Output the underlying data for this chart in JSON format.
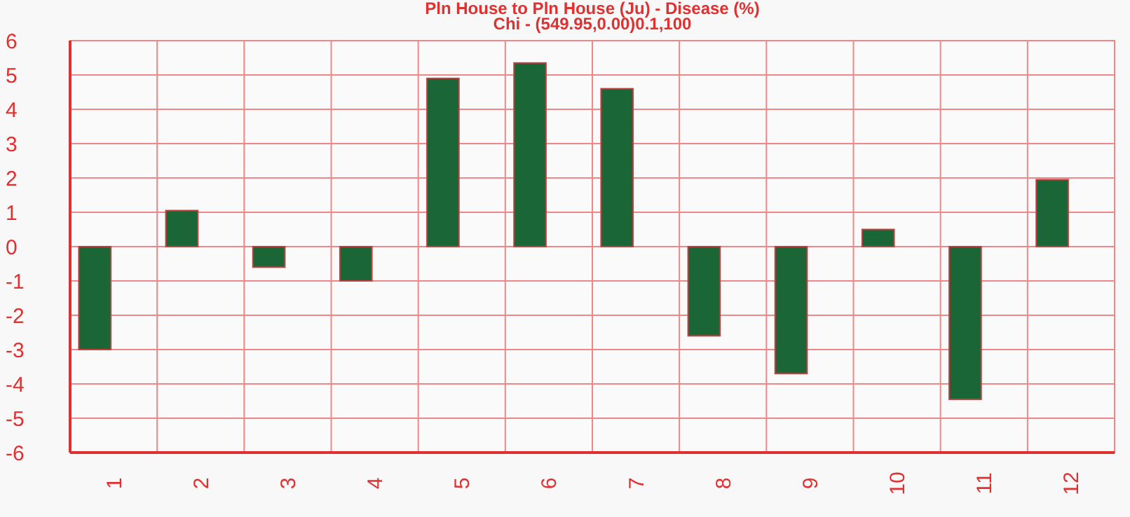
{
  "chart_data": {
    "type": "bar",
    "title": "Pln House to Pln House (Ju) - Disease (%)",
    "subtitle": "Chi - (549.95,0.00)0.1,100",
    "categories": [
      "1",
      "2",
      "3",
      "4",
      "5",
      "6",
      "7",
      "8",
      "9",
      "10",
      "11",
      "12"
    ],
    "series": [
      {
        "color": "#1a6636",
        "values": [
          -3.0,
          1.05,
          -0.6,
          -1.0,
          4.9,
          5.35,
          4.6,
          -2.6,
          -3.7,
          0.5,
          -4.45,
          1.95
        ]
      },
      {
        "color": "#c0392b",
        "values": [
          0,
          0,
          0,
          0,
          0,
          0,
          0,
          0,
          0,
          0,
          0,
          0
        ]
      }
    ],
    "ylim": [
      -6,
      6
    ],
    "yticks": [
      -6,
      -5,
      -4,
      -3,
      -2,
      -1,
      0,
      1,
      2,
      3,
      4,
      5,
      6
    ],
    "grid": true
  }
}
